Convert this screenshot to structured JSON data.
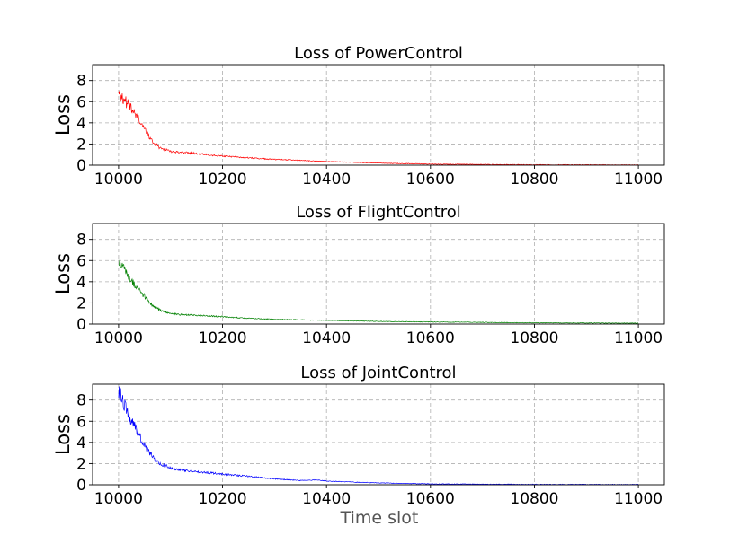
{
  "figure": {
    "xlabel": "Time slot"
  },
  "chart_data": [
    {
      "type": "line",
      "title": "Loss of PowerControl",
      "ylabel": "Loss",
      "xlabel": "",
      "color": "#ff0000",
      "xlim": [
        9950,
        11050
      ],
      "ylim": [
        0,
        9.5
      ],
      "xticks": [
        10000,
        10200,
        10400,
        10600,
        10800,
        11000
      ],
      "yticks": [
        0,
        2,
        4,
        6,
        8
      ],
      "grid": true,
      "series": [
        {
          "x": [
            10000,
            10010,
            10020,
            10030,
            10040,
            10050,
            10060,
            10070,
            10080,
            10100,
            10120,
            10140,
            10160,
            10180,
            10200,
            10250,
            10300,
            10350,
            10400,
            10450,
            10500,
            10550,
            10600,
            10650,
            10700,
            10800,
            10900,
            11000
          ],
          "y": [
            7.0,
            6.2,
            5.6,
            5.0,
            4.2,
            3.4,
            2.6,
            2.0,
            1.6,
            1.3,
            1.2,
            1.15,
            1.05,
            0.95,
            0.85,
            0.7,
            0.55,
            0.45,
            0.35,
            0.27,
            0.2,
            0.15,
            0.1,
            0.08,
            0.06,
            0.04,
            0.03,
            0.02
          ]
        }
      ]
    },
    {
      "type": "line",
      "title": "Loss of FlightControl",
      "ylabel": "Loss",
      "xlabel": "",
      "color": "#008000",
      "xlim": [
        9950,
        11050
      ],
      "ylim": [
        0,
        9.5
      ],
      "xticks": [
        10000,
        10200,
        10400,
        10600,
        10800,
        11000
      ],
      "yticks": [
        0,
        2,
        4,
        6,
        8
      ],
      "grid": true,
      "series": [
        {
          "x": [
            10000,
            10010,
            10020,
            10030,
            10040,
            10050,
            10060,
            10070,
            10080,
            10100,
            10120,
            10140,
            10160,
            10180,
            10200,
            10250,
            10300,
            10350,
            10400,
            10450,
            10500,
            10550,
            10600,
            10650,
            10700,
            10800,
            10900,
            11000
          ],
          "y": [
            6.0,
            5.2,
            4.5,
            3.8,
            3.2,
            2.6,
            2.0,
            1.6,
            1.3,
            1.0,
            0.9,
            0.85,
            0.8,
            0.75,
            0.7,
            0.55,
            0.45,
            0.4,
            0.35,
            0.3,
            0.25,
            0.22,
            0.2,
            0.18,
            0.16,
            0.12,
            0.1,
            0.08
          ]
        }
      ]
    },
    {
      "type": "line",
      "title": "Loss of JointControl",
      "ylabel": "Loss",
      "xlabel": "Time slot",
      "color": "#0000ff",
      "xlim": [
        9950,
        11050
      ],
      "ylim": [
        0,
        9.5
      ],
      "xticks": [
        10000,
        10200,
        10400,
        10600,
        10800,
        11000
      ],
      "yticks": [
        0,
        2,
        4,
        6,
        8
      ],
      "grid": true,
      "series": [
        {
          "x": [
            10000,
            10010,
            10020,
            10030,
            10040,
            10050,
            10060,
            10070,
            10080,
            10100,
            10120,
            10140,
            10160,
            10180,
            10200,
            10250,
            10300,
            10350,
            10380,
            10400,
            10450,
            10500,
            10550,
            10600,
            10700,
            10800,
            10900,
            11000
          ],
          "y": [
            9.0,
            7.8,
            6.6,
            5.6,
            4.6,
            3.7,
            3.0,
            2.4,
            2.0,
            1.6,
            1.4,
            1.3,
            1.2,
            1.1,
            1.0,
            0.8,
            0.55,
            0.4,
            0.45,
            0.35,
            0.25,
            0.18,
            0.12,
            0.08,
            0.05,
            0.04,
            0.03,
            0.02
          ]
        }
      ]
    }
  ]
}
